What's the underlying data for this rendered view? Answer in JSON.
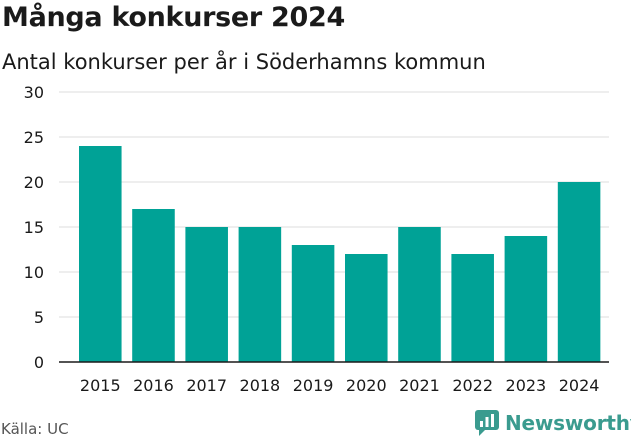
{
  "header": {
    "title": "Många konkurser 2024",
    "subtitle": "Antal konkurser per år i Söderhamns kommun"
  },
  "footer": {
    "source": "Källa: UC",
    "brand": "Newsworthy"
  },
  "colors": {
    "bar": "#00a296",
    "grid": "#dddddd",
    "axis": "#1a1a1a",
    "brand": "#3a9b8f"
  },
  "chart_data": {
    "type": "bar",
    "categories": [
      "2015",
      "2016",
      "2017",
      "2018",
      "2019",
      "2020",
      "2021",
      "2022",
      "2023",
      "2024"
    ],
    "values": [
      24,
      17,
      15,
      15,
      13,
      12,
      15,
      12,
      14,
      20
    ],
    "title": "Många konkurser 2024",
    "subtitle": "Antal konkurser per år i Söderhamns kommun",
    "xlabel": "",
    "ylabel": "",
    "ylim": [
      0,
      30
    ],
    "yticks": [
      0,
      5,
      10,
      15,
      20,
      25,
      30
    ],
    "grid": true,
    "legend": "none"
  }
}
